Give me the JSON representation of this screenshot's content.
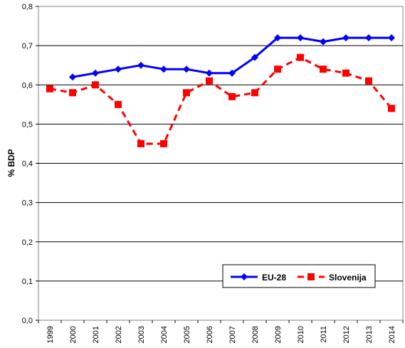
{
  "chart_data": {
    "type": "line",
    "title": "",
    "xlabel": "",
    "ylabel": "% BDP",
    "ylim": [
      0,
      0.8
    ],
    "yticks": [
      "0,0",
      "0,1",
      "0,2",
      "0,3",
      "0,4",
      "0,5",
      "0,6",
      "0,7",
      "0,8"
    ],
    "x": [
      "1999",
      "2000",
      "2001",
      "2002",
      "2003",
      "2004",
      "2005",
      "2006",
      "2007",
      "2008",
      "2009",
      "2010",
      "2011",
      "2012",
      "2013",
      "2014"
    ],
    "grid": "horizontal",
    "legend_position": "bottom-right",
    "series": [
      {
        "name": "EU-28",
        "color": "#0000FF",
        "line_style": "solid",
        "marker": "diamond",
        "values": [
          null,
          0.62,
          0.63,
          0.64,
          0.65,
          0.64,
          0.64,
          0.63,
          0.63,
          0.67,
          0.72,
          0.72,
          0.71,
          0.72,
          0.72,
          0.72
        ]
      },
      {
        "name": "Slovenija",
        "color": "#FF0000",
        "line_style": "dashed",
        "marker": "square",
        "values": [
          0.59,
          0.58,
          0.6,
          0.55,
          0.45,
          0.45,
          0.58,
          0.61,
          0.57,
          0.58,
          0.64,
          0.67,
          0.64,
          0.63,
          0.61,
          0.54
        ]
      }
    ]
  }
}
